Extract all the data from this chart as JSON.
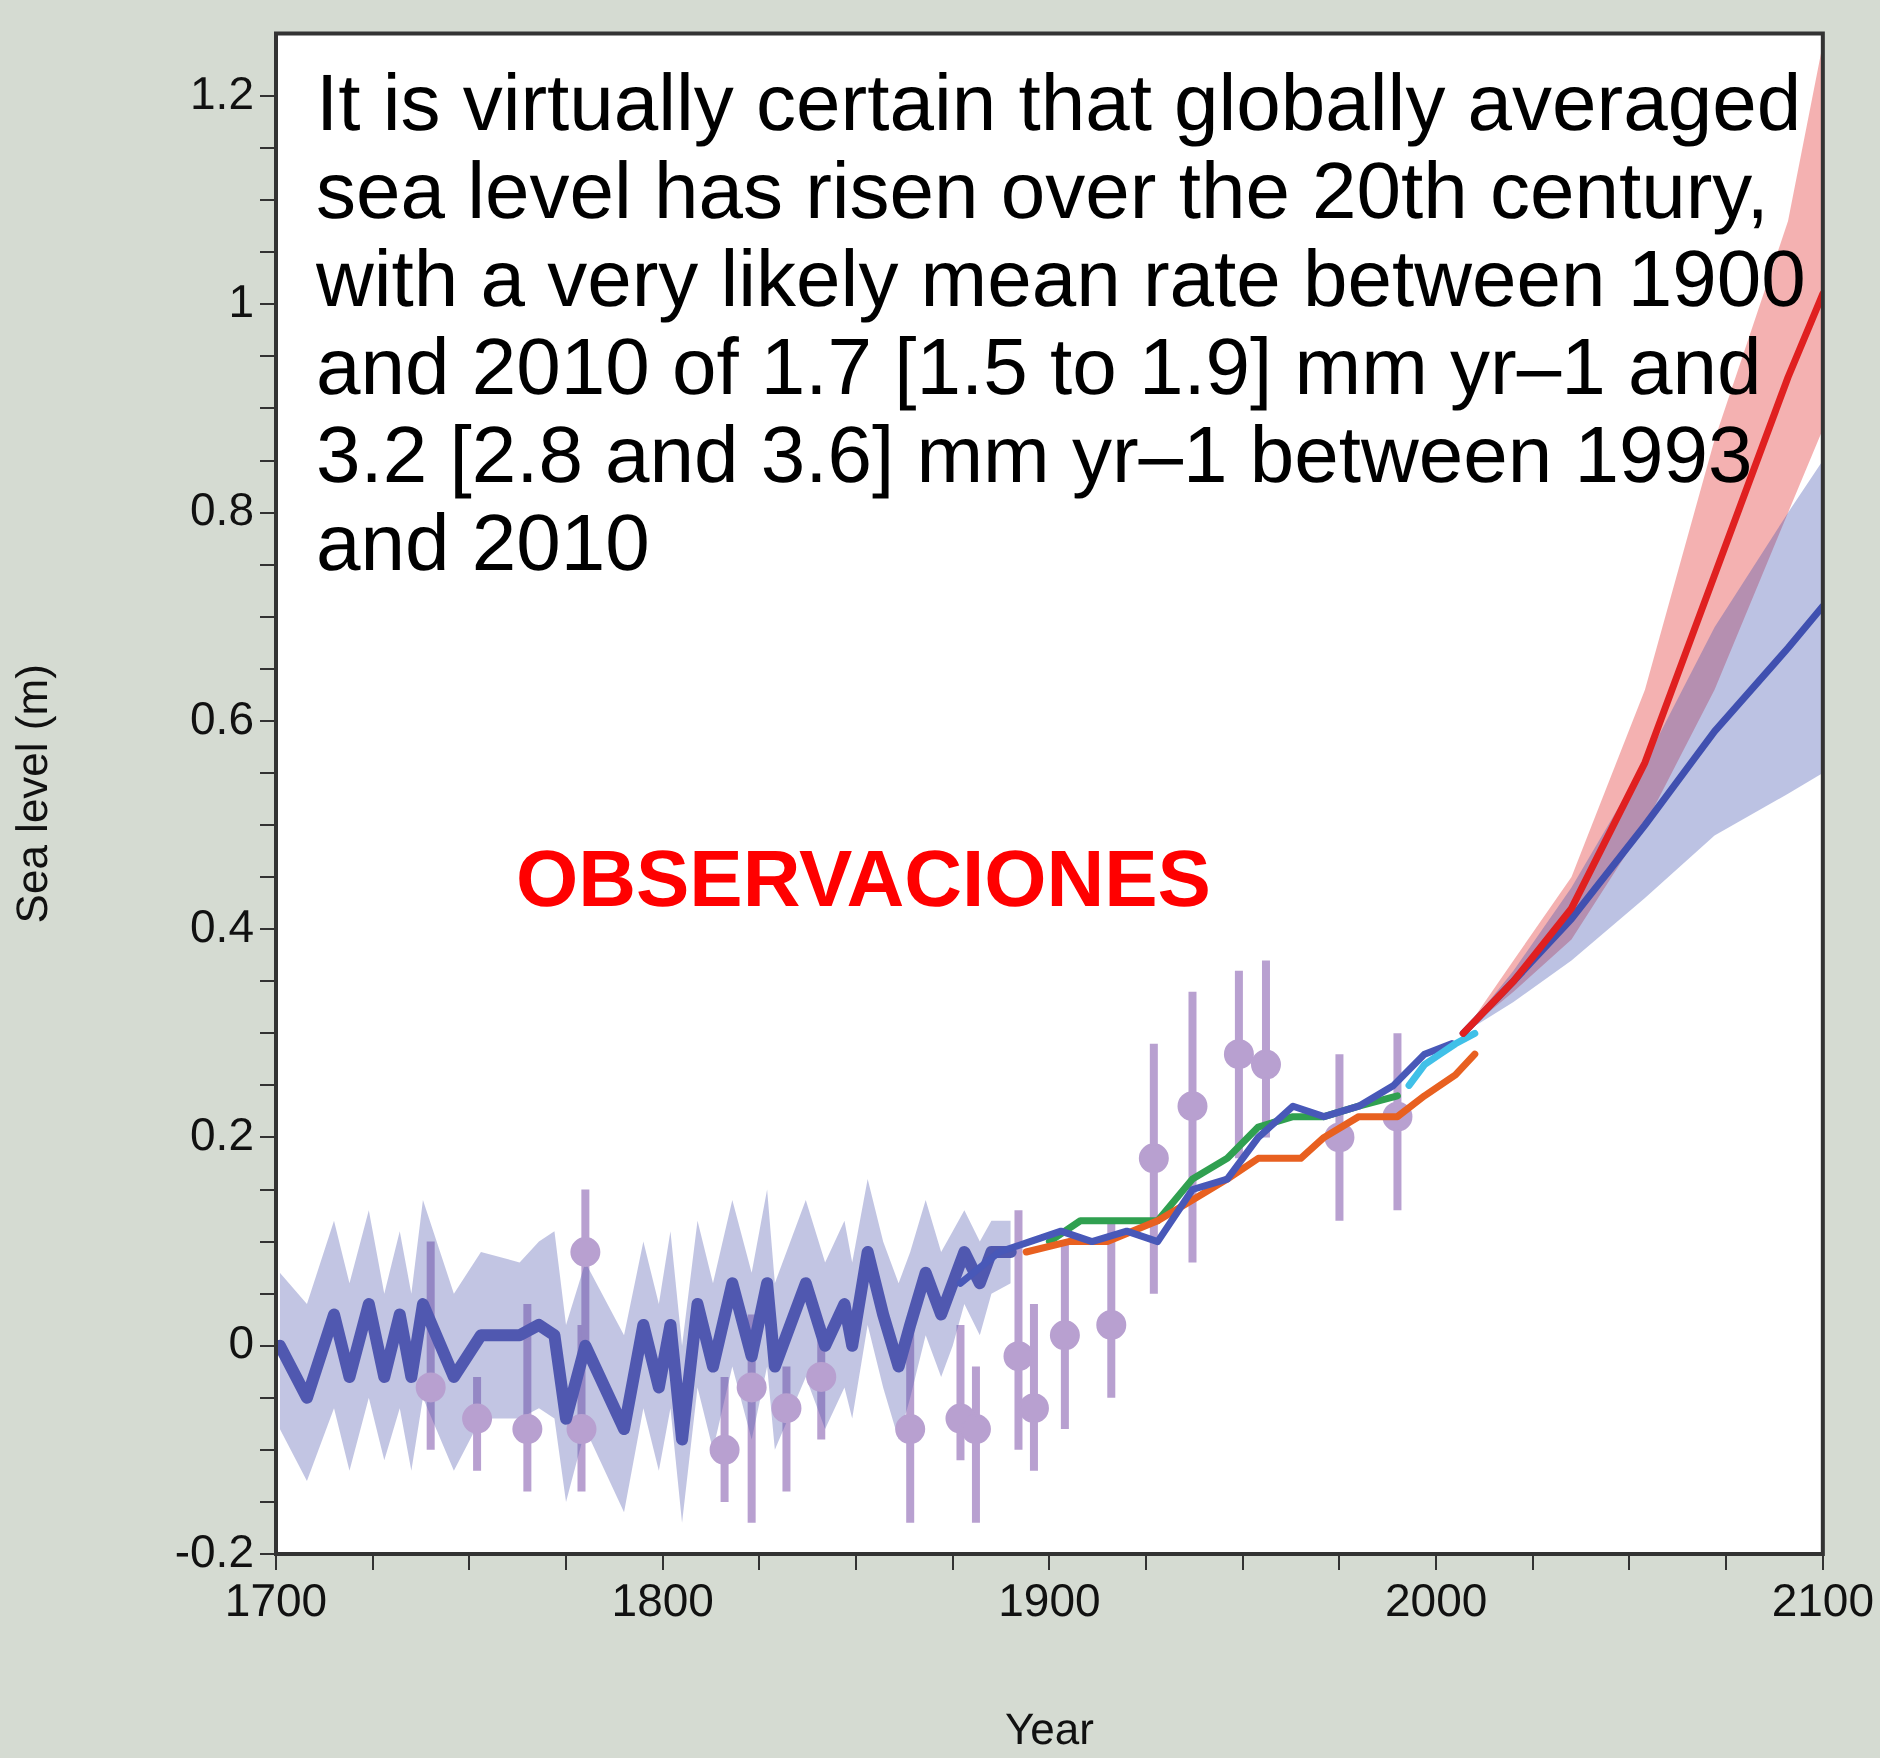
{
  "chart_data": {
    "type": "line",
    "xlabel": "Year",
    "ylabel": "Sea level (m)",
    "grid": false,
    "legend": false,
    "marker": "none",
    "annotations": [
      "It is virtually certain that globally averaged sea level has risen over the 20th century, with a very likely mean rate between 1900 and 2010 of 1.7 [1.5 to 1.9] mm yr–1 and 3.2 [2.8 and 3.6] mm yr–1 between 1993 and 2010",
      "OBSERVACIONES"
    ],
    "xlim": [
      1700,
      2100
    ],
    "xticks": [
      1700,
      {
        "value": 1725,
        "label": null
      },
      {
        "value": 1750,
        "label": null
      },
      {
        "value": 1775,
        "label": null
      },
      1800,
      {
        "value": 1825,
        "label": null
      },
      {
        "value": 1850,
        "label": null
      },
      {
        "value": 1875,
        "label": null
      },
      1900,
      {
        "value": 1925,
        "label": null
      },
      {
        "value": 1950,
        "label": null
      },
      {
        "value": 1975,
        "label": null
      },
      2000,
      {
        "value": 2025,
        "label": null
      },
      {
        "value": 2050,
        "label": null
      },
      {
        "value": 2075,
        "label": null
      },
      2100
    ],
    "ylim": [
      -0.2,
      1.26
    ],
    "yticks": [
      -0.2,
      {
        "value": -0.15,
        "label": null
      },
      {
        "value": -0.1,
        "label": null
      },
      {
        "value": -0.05,
        "label": null
      },
      0,
      {
        "value": 0.05,
        "label": null
      },
      {
        "value": 0.1,
        "label": null
      },
      {
        "value": 0.15,
        "label": null
      },
      0.2,
      {
        "value": 0.25,
        "label": null
      },
      {
        "value": 0.3,
        "label": null
      },
      {
        "value": 0.35,
        "label": null
      },
      0.4,
      {
        "value": 0.45,
        "label": null
      },
      {
        "value": 0.5,
        "label": null
      },
      {
        "value": 0.55,
        "label": null
      },
      0.6,
      {
        "value": 0.65,
        "label": null
      },
      {
        "value": 0.7,
        "label": null
      },
      {
        "value": 0.75,
        "label": null
      },
      0.8,
      {
        "value": 0.85,
        "label": null
      },
      {
        "value": 0.9,
        "label": null
      },
      {
        "value": 0.95,
        "label": null
      },
      1,
      {
        "value": 1.05,
        "label": null
      },
      {
        "value": 1.1,
        "label": null
      },
      {
        "value": 1.15,
        "label": null
      },
      1.2
    ],
    "series": [
      {
        "type": "scatter",
        "marker": "circle",
        "color": "#b8a0d0",
        "x": [
          1740,
          1752,
          1765,
          1779,
          1780,
          1816,
          1823,
          1832,
          1841,
          1864,
          1877,
          1881,
          1892,
          1896,
          1904,
          1916,
          1927,
          1937,
          1949,
          1956,
          1975,
          1990
        ],
        "values": [
          -0.04,
          -0.07,
          -0.08,
          -0.08,
          0.09,
          -0.1,
          -0.04,
          -0.06,
          -0.03,
          -0.08,
          -0.07,
          -0.08,
          -0.01,
          -0.06,
          0.01,
          0.02,
          0.18,
          0.23,
          0.28,
          0.27,
          0.2,
          0.22
        ],
        "errors": [
          [
            -0.1,
            0.1
          ],
          [
            -0.12,
            -0.03
          ],
          [
            -0.14,
            0.04
          ],
          [
            -0.14,
            0.02
          ],
          [
            0.0,
            0.15
          ],
          [
            -0.15,
            -0.03
          ],
          [
            -0.17,
            0.03
          ],
          [
            -0.14,
            -0.02
          ],
          [
            -0.09,
            0.02
          ],
          [
            -0.17,
            0.02
          ],
          [
            -0.11,
            0.02
          ],
          [
            -0.17,
            -0.02
          ],
          [
            -0.1,
            0.13
          ],
          [
            -0.12,
            0.04
          ],
          [
            -0.08,
            0.1
          ],
          [
            -0.05,
            0.12
          ],
          [
            0.05,
            0.29
          ],
          [
            0.08,
            0.34
          ],
          [
            0.18,
            0.36
          ],
          [
            0.2,
            0.37
          ],
          [
            0.12,
            0.28
          ],
          [
            0.13,
            0.3
          ]
        ]
      },
      {
        "color": "#5058b0",
        "x": [
          1701,
          1708,
          1715,
          1719,
          1724,
          1728,
          1732,
          1735,
          1738,
          1746,
          1753,
          1763,
          1768,
          1772,
          1775,
          1780,
          1790,
          1795,
          1799,
          1802,
          1805,
          1809,
          1813,
          1818,
          1823,
          1827,
          1829,
          1837,
          1842,
          1847,
          1849,
          1853,
          1857,
          1861,
          1864,
          1868,
          1872,
          1875,
          1878,
          1882,
          1885,
          1890
        ],
        "values": [
          0,
          -0.05,
          0.03,
          -0.03,
          0.04,
          -0.03,
          0.03,
          -0.03,
          0.04,
          -0.03,
          0.01,
          0.01,
          0.02,
          0.01,
          -0.07,
          0,
          -0.08,
          0.02,
          -0.04,
          0.02,
          -0.09,
          0.04,
          -0.02,
          0.06,
          -0.01,
          0.06,
          -0.02,
          0.06,
          0,
          0.04,
          0,
          0.09,
          0.03,
          -0.02,
          0.02,
          0.07,
          0.03,
          0.06,
          0.09,
          0.06,
          0.09,
          0.09
        ],
        "upper": [
          0.07,
          0.04,
          0.12,
          0.06,
          0.13,
          0.05,
          0.11,
          0.05,
          0.14,
          0.05,
          0.09,
          0.08,
          0.1,
          0.11,
          0.02,
          0.08,
          0.01,
          0.1,
          0.04,
          0.11,
          0.0,
          0.12,
          0.06,
          0.14,
          0.07,
          0.15,
          0.06,
          0.14,
          0.08,
          0.12,
          0.08,
          0.16,
          0.1,
          0.06,
          0.09,
          0.14,
          0.09,
          0.11,
          0.13,
          0.1,
          0.12,
          0.12
        ],
        "lower": [
          -0.08,
          -0.13,
          -0.06,
          -0.12,
          -0.05,
          -0.11,
          -0.06,
          -0.12,
          -0.05,
          -0.12,
          -0.07,
          -0.07,
          -0.06,
          -0.07,
          -0.15,
          -0.08,
          -0.16,
          -0.06,
          -0.12,
          -0.06,
          -0.17,
          -0.04,
          -0.1,
          -0.02,
          -0.09,
          -0.02,
          -0.1,
          -0.03,
          -0.08,
          -0.04,
          -0.07,
          0.02,
          -0.04,
          -0.09,
          -0.05,
          0.01,
          -0.03,
          0.0,
          0.04,
          0.01,
          0.05,
          0.06
        ]
      },
      {
        "color": "#30a050",
        "x": [
          1900,
          1908,
          1918,
          1928,
          1937,
          1946,
          1954,
          1963,
          1971,
          1980,
          1990
        ],
        "values": [
          0.1,
          0.12,
          0.12,
          0.12,
          0.16,
          0.18,
          0.21,
          0.22,
          0.22,
          0.23,
          0.24
        ]
      },
      {
        "color": "#e86020",
        "x": [
          1894,
          1905,
          1915,
          1928,
          1937,
          1946,
          1954,
          1965,
          1971,
          1980,
          1990,
          1997,
          2005,
          2010
        ],
        "values": [
          0.09,
          0.1,
          0.1,
          0.12,
          0.14,
          0.16,
          0.18,
          0.18,
          0.2,
          0.22,
          0.22,
          0.24,
          0.26,
          0.28
        ]
      },
      {
        "color": "#4858b8",
        "x": [
          1877,
          1887,
          1895,
          1903,
          1911,
          1920,
          1928,
          1937,
          1946,
          1954,
          1963,
          1971,
          1980,
          1989,
          1997,
          2004
        ],
        "values": [
          0.06,
          0.09,
          0.1,
          0.11,
          0.1,
          0.11,
          0.1,
          0.15,
          0.16,
          0.2,
          0.23,
          0.22,
          0.23,
          0.25,
          0.28,
          0.29
        ]
      },
      {
        "color": "#40c0e8",
        "x": [
          1993,
          1997,
          2001,
          2005,
          2010
        ],
        "values": [
          0.25,
          0.27,
          0.28,
          0.29,
          0.3
        ]
      },
      {
        "color": "#e02020",
        "x": [
          2007,
          2020,
          2035,
          2054,
          2072,
          2091,
          2100
        ],
        "values": [
          0.3,
          0.35,
          0.42,
          0.56,
          0.74,
          0.93,
          1.01
        ],
        "upper": [
          0.3,
          0.37,
          0.45,
          0.63,
          0.87,
          1.08,
          1.25
        ],
        "lower": [
          0.3,
          0.34,
          0.39,
          0.5,
          0.63,
          0.8,
          0.88
        ]
      },
      {
        "color": "#4050b0",
        "x": [
          2007,
          2020,
          2035,
          2054,
          2072,
          2091,
          2100
        ],
        "values": [
          0.3,
          0.35,
          0.41,
          0.5,
          0.59,
          0.67,
          0.71
        ],
        "upper": [
          0.3,
          0.36,
          0.44,
          0.56,
          0.69,
          0.8,
          0.85
        ],
        "lower": [
          0.3,
          0.33,
          0.37,
          0.43,
          0.49,
          0.53,
          0.55
        ]
      }
    ]
  }
}
